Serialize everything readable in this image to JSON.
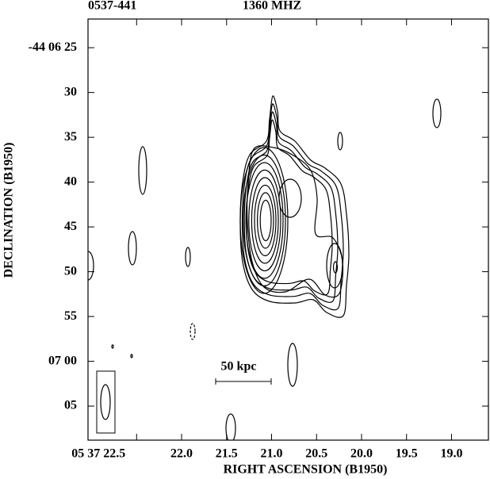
{
  "chart_data": {
    "type": "contour",
    "title": "0537-441",
    "subtitle": "1360 MHZ",
    "x_label": "RIGHT ASCENSION (B1950)",
    "y_label": "DECLINATION (B1950)",
    "annotations": [
      "50 kpc"
    ],
    "xlim": [
      23.04,
      18.59
    ],
    "xticks": [
      {
        "value": 22.5,
        "label": "05 37 22.5"
      },
      {
        "value": 22,
        "label": "22.0"
      },
      21.5,
      {
        "value": 21,
        "label": "21.0"
      },
      20.5,
      {
        "value": 20,
        "label": "20.0"
      },
      19.5,
      {
        "value": 19,
        "label": "19.0"
      }
    ],
    "ylim": [
      68.8,
      21.8
    ],
    "yticks": [
      {
        "value": 25,
        "label": "-44 06 25"
      },
      30,
      35,
      40,
      45,
      50,
      55,
      {
        "value": 60,
        "label": "07 00"
      },
      {
        "value": 65,
        "label": "05"
      }
    ],
    "color": "#000000"
  }
}
